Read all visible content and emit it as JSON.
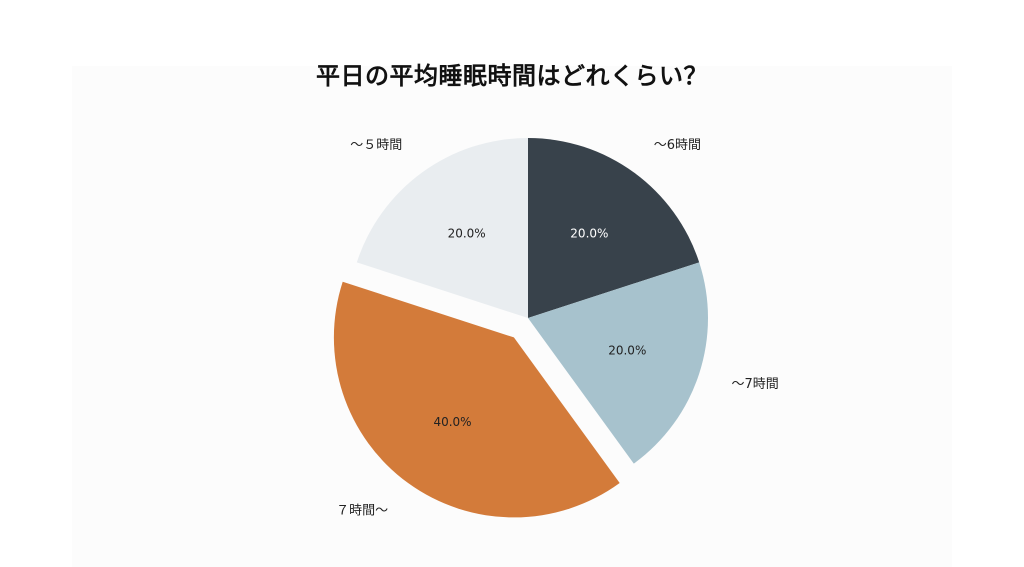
{
  "chart_data": {
    "type": "pie",
    "title": "平日の平均睡眠時間はどれくらい？",
    "slices": [
      {
        "label": "～6時間",
        "value": 20.0,
        "percent_label": "20.0%",
        "color": "#38424b",
        "text_color": "#ffffff",
        "exploded": false
      },
      {
        "label": "～7時間",
        "value": 20.0,
        "percent_label": "20.0%",
        "color": "#a7c2cd",
        "text_color": "#222222",
        "exploded": false
      },
      {
        "label": "７時間～",
        "value": 40.0,
        "percent_label": "40.0%",
        "color": "#d37b3a",
        "text_color": "#222222",
        "exploded": true
      },
      {
        "label": "～５時間",
        "value": 20.0,
        "percent_label": "20.0%",
        "color": "#e9edf0",
        "text_color": "#222222",
        "exploded": false
      }
    ],
    "start_angle": "12 o'clock",
    "direction": "clockwise",
    "legend": "none"
  }
}
